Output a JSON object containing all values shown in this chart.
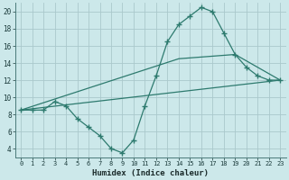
{
  "xlabel": "Humidex (Indice chaleur)",
  "bg_color": "#cce8ea",
  "line_color": "#2d7a6e",
  "grid_color": "#b0d4d8",
  "xlim": [
    -0.5,
    23.5
  ],
  "ylim": [
    3.0,
    21.0
  ],
  "xticks": [
    0,
    1,
    2,
    3,
    4,
    5,
    6,
    7,
    8,
    9,
    10,
    11,
    12,
    13,
    14,
    15,
    16,
    17,
    18,
    19,
    20,
    21,
    22,
    23
  ],
  "yticks": [
    4,
    6,
    8,
    10,
    12,
    14,
    16,
    18,
    20
  ],
  "line_main": {
    "x": [
      0,
      1,
      2,
      3,
      4,
      5,
      6,
      7,
      8,
      9,
      10,
      11,
      12,
      13,
      14,
      15,
      16,
      17,
      18,
      19,
      20,
      21,
      22,
      23
    ],
    "y": [
      8.5,
      8.5,
      8.5,
      9.5,
      9.0,
      7.5,
      6.5,
      5.5,
      4.0,
      3.5,
      5.0,
      9.0,
      12.5,
      16.5,
      18.5,
      19.5,
      20.5,
      20.0,
      17.5,
      15.0,
      13.5,
      12.5,
      12.0,
      12.0
    ]
  },
  "line_straight1": {
    "x": [
      0,
      23
    ],
    "y": [
      8.5,
      12.0
    ]
  },
  "line_straight2": {
    "x": [
      0,
      14,
      19,
      23
    ],
    "y": [
      8.5,
      14.5,
      15.0,
      12.0
    ]
  }
}
